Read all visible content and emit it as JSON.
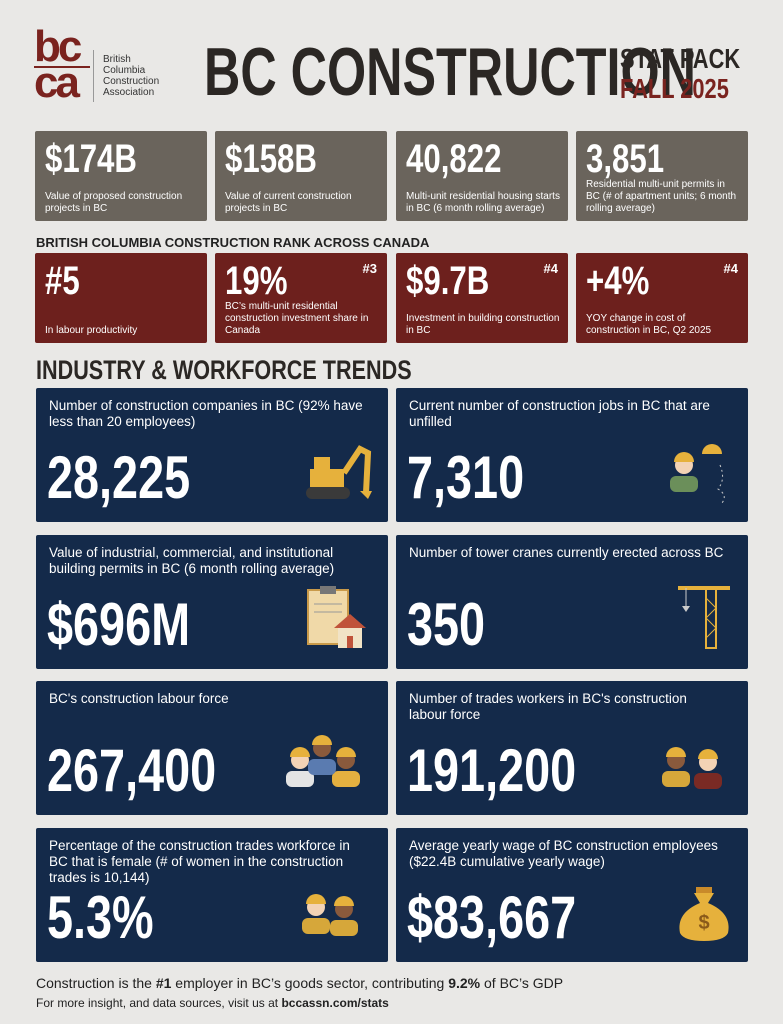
{
  "header": {
    "logo": [
      "bc",
      "ca"
    ],
    "org_name": [
      "British",
      "Columbia",
      "Construction",
      "Association"
    ],
    "title": "BC CONSTRUCTION",
    "subtitle": "STAT PACK",
    "edition": "FALL 2025"
  },
  "stats": [
    {
      "value": "$174B",
      "label": "Value of proposed construction projects in BC"
    },
    {
      "value": "$158B",
      "label": "Value of current construction projects in BC"
    },
    {
      "value": "40,822",
      "label": "Multi-unit residential housing starts in BC (6 month rolling average)"
    },
    {
      "value": "3,851",
      "label": "Residential multi-unit permits in BC (# of apartment units; 6 month rolling average)"
    }
  ],
  "rank_section": {
    "title": "BRITISH COLUMBIA CONSTRUCTION RANK ACROSS CANADA",
    "cards": [
      {
        "value": "#5",
        "label": "In labour productivity"
      },
      {
        "value": "19%",
        "rank": "#3",
        "label": "BC’s multi-unit residential construction investment share in Canada"
      },
      {
        "value": "$9.7B",
        "rank": "#4",
        "label": "Investment in building construction in BC"
      },
      {
        "value": "+4%",
        "rank": "#4",
        "label": "YOY change in cost of construction in BC, Q2 2025"
      }
    ]
  },
  "trends_section": {
    "title": "INDUSTRY & WORKFORCE TRENDS",
    "cards": [
      {
        "label": "Number of construction companies in BC (92% have less than 20 employees)",
        "value": "28,225"
      },
      {
        "label": "Current number of construction jobs in BC that are unfilled",
        "value": "7,310"
      },
      {
        "label": "Value of industrial, commercial, and institutional building permits in BC (6 month rolling average)",
        "value": "$696M"
      },
      {
        "label": "Number of tower cranes currently erected across BC",
        "value": "350"
      },
      {
        "label": "BC's construction labour force",
        "value": "267,400"
      },
      {
        "label": "Number of trades workers in BC's construction labour force",
        "value": "191,200"
      },
      {
        "label": "Percentage of the construction trades workforce in BC that is female (# of women in the construction trades is 10,144)",
        "value": "5.3%"
      },
      {
        "label": "Average yearly wage of BC construction employees ($22.4B cumulative yearly wage)",
        "value": "$83,667"
      }
    ]
  },
  "footer": {
    "line1": [
      "Construction is the ",
      "#1",
      " employer in BC’s goods sector, contributing ",
      "9.2%",
      " of BC’s GDP"
    ],
    "line2": [
      "For more insight, and data sources, visit us at ",
      "bccassn.com/stats"
    ]
  }
}
